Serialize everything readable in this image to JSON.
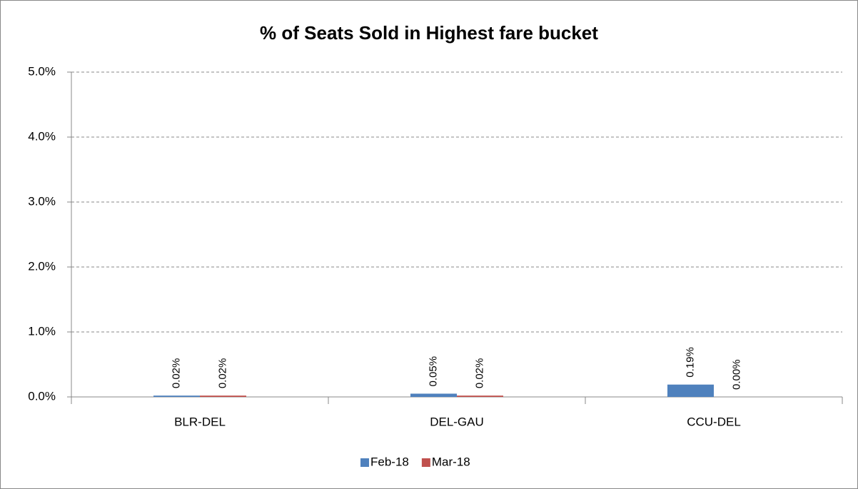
{
  "chart_data": {
    "type": "bar",
    "title": "% of Seats Sold in Highest fare bucket",
    "categories": [
      "BLR-DEL",
      "DEL-GAU",
      "CCU-DEL"
    ],
    "series": [
      {
        "name": "Feb-18",
        "color": "#4f81bd",
        "values": [
          0.02,
          0.05,
          0.19
        ],
        "value_labels": [
          "0.02%",
          "0.05%",
          "0.19%"
        ]
      },
      {
        "name": "Mar-18",
        "color": "#c0504d",
        "values": [
          0.02,
          0.02,
          0.0
        ],
        "value_labels": [
          "0.02%",
          "0.02%",
          "0.00%"
        ]
      }
    ],
    "ylim": [
      0,
      5
    ],
    "yticks": [
      {
        "value": 0,
        "label": "0.0%"
      },
      {
        "value": 1,
        "label": "1.0%"
      },
      {
        "value": 2,
        "label": "2.0%"
      },
      {
        "value": 3,
        "label": "3.0%"
      },
      {
        "value": 4,
        "label": "4.0%"
      },
      {
        "value": 5,
        "label": "5.0%"
      }
    ],
    "grid": true,
    "legend": "bottom"
  }
}
